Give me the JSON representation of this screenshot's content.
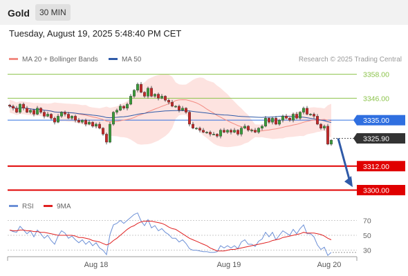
{
  "header": {
    "instrument": "Gold",
    "timeframe": "30 MIN"
  },
  "datetime": "Tuesday, August 19, 2025 5:48:40 PM CET",
  "legend": {
    "items": [
      {
        "label": "MA 20 + Bollinger Bands",
        "color": "#f28b82"
      },
      {
        "label": "MA 50",
        "color": "#2f5aa8"
      }
    ],
    "credit": "Research © 2025 Trading Central"
  },
  "rsi_legend": {
    "items": [
      {
        "label": "RSI",
        "color": "#6b8fd6"
      },
      {
        "label": "9MA",
        "color": "#e02020"
      }
    ]
  },
  "chart_data": [
    {
      "type": "candlestick",
      "ylim": [
        3295,
        3362
      ],
      "x_labels": [
        "Aug 18",
        "Aug 19",
        "Aug 20"
      ],
      "levels": [
        {
          "value": 3358.0,
          "label": "3358.00",
          "kind": "resistance",
          "color": "#8bc34a"
        },
        {
          "value": 3346.0,
          "label": "3346.00",
          "kind": "resistance",
          "color": "#8bc34a"
        },
        {
          "value": 3335.0,
          "label": "3335.00",
          "kind": "pivot",
          "color": "#2f6fe0"
        },
        {
          "value": 3325.9,
          "label": "3325.90",
          "kind": "last price",
          "color": "#333333"
        },
        {
          "value": 3312.0,
          "label": "3312.00",
          "kind": "support",
          "color": "#e00000"
        },
        {
          "value": 3300.0,
          "label": "3300.00",
          "kind": "support",
          "color": "#e00000"
        }
      ],
      "close": [
        3342,
        3341,
        3339,
        3343,
        3341,
        3339,
        3340,
        3338,
        3341,
        3339,
        3337,
        3338,
        3336,
        3334,
        3337,
        3339,
        3338,
        3336,
        3337,
        3335,
        3334,
        3335,
        3333,
        3334,
        3332,
        3333,
        3331,
        3328,
        3324,
        3333,
        3339,
        3340,
        3342,
        3341,
        3343,
        3347,
        3350,
        3353,
        3349,
        3347,
        3351,
        3347,
        3348,
        3346,
        3347,
        3345,
        3344,
        3342,
        3342,
        3340,
        3341,
        3339,
        3333,
        3331,
        3331,
        3330,
        3329,
        3329,
        3328,
        3328,
        3327,
        3330,
        3329,
        3330,
        3329,
        3330,
        3328,
        3331,
        3332,
        3330,
        3330,
        3329,
        3331,
        3332,
        3336,
        3334,
        3336,
        3333,
        3335,
        3337,
        3336,
        3335,
        3338,
        3336,
        3339,
        3341,
        3338,
        3338,
        3337,
        3333,
        3331,
        3332,
        3323,
        3325
      ],
      "rsi": {
        "ylim": [
          25,
          75
        ],
        "ticks": [
          70,
          50,
          30
        ],
        "rsi": [
          57,
          55,
          54,
          62,
          57,
          52,
          56,
          48,
          57,
          52,
          46,
          50,
          43,
          38,
          49,
          56,
          53,
          46,
          49,
          44,
          40,
          44,
          38,
          42,
          36,
          40,
          33,
          30,
          24,
          51,
          64,
          66,
          70,
          66,
          70,
          74,
          78,
          80,
          69,
          63,
          71,
          60,
          63,
          56,
          59,
          54,
          51,
          46,
          46,
          41,
          44,
          39,
          32,
          30,
          30,
          29,
          28,
          28,
          27,
          27,
          28,
          36,
          33,
          36,
          33,
          36,
          32,
          41,
          44,
          38,
          38,
          35,
          42,
          45,
          54,
          48,
          54,
          44,
          50,
          56,
          53,
          50,
          58,
          52,
          59,
          64,
          52,
          52,
          48,
          37,
          31,
          34,
          23,
          27
        ],
        "ma9": [
          57,
          56,
          56,
          57,
          57,
          56,
          56,
          55,
          55,
          54,
          54,
          53,
          52,
          51,
          50,
          50,
          50,
          50,
          50,
          49,
          47,
          47,
          46,
          45,
          43,
          42,
          41,
          39,
          37,
          39,
          43,
          46,
          50,
          54,
          58,
          61,
          63,
          66,
          68,
          69,
          69,
          69,
          68,
          67,
          66,
          64,
          61,
          59,
          58,
          55,
          52,
          49,
          46,
          44,
          42,
          40,
          38,
          36,
          33,
          31,
          29,
          29,
          29,
          30,
          31,
          31,
          32,
          33,
          34,
          35,
          36,
          37,
          38,
          39,
          40,
          41,
          43,
          44,
          45,
          47,
          48,
          49,
          50,
          51,
          52,
          54,
          53,
          53,
          53,
          52,
          51,
          49,
          46,
          44
        ]
      }
    }
  ]
}
